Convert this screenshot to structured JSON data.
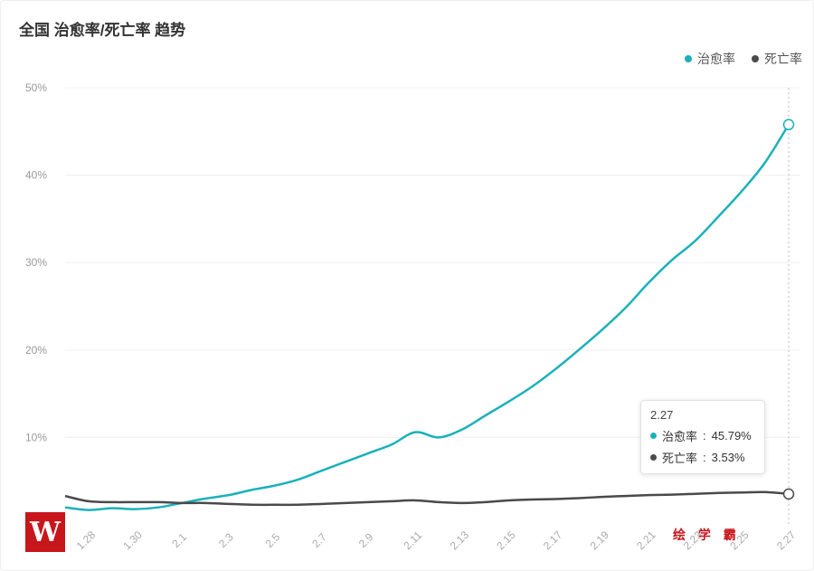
{
  "title": "全国 治愈率/死亡率 趋势",
  "watermark": "绘 学 霸",
  "logo_text": "W",
  "tooltip": {
    "date": "2.27",
    "rows": [
      {
        "name": "治愈率",
        "value": "45.79%"
      },
      {
        "name": "死亡率",
        "value": "3.53%"
      }
    ]
  },
  "chart_data": {
    "type": "line",
    "title": "全国 治愈率/死亡率 趋势",
    "xlabel": "",
    "ylabel": "",
    "ylim": [
      0,
      50
    ],
    "yticks": [
      "10%",
      "20%",
      "30%",
      "40%",
      "50%"
    ],
    "ytick_values": [
      10,
      20,
      30,
      40,
      50
    ],
    "xtick_labels": [
      "1.28",
      "1.30",
      "2.1",
      "2.3",
      "2.5",
      "2.7",
      "2.9",
      "2.11",
      "2.13",
      "2.15",
      "2.17",
      "2.19",
      "2.21",
      "2.23",
      "2.25",
      "2.27"
    ],
    "x": [
      "1.27",
      "1.28",
      "1.29",
      "1.30",
      "1.31",
      "2.1",
      "2.2",
      "2.3",
      "2.4",
      "2.5",
      "2.6",
      "2.7",
      "2.8",
      "2.9",
      "2.10",
      "2.11",
      "2.12",
      "2.13",
      "2.14",
      "2.15",
      "2.16",
      "2.17",
      "2.18",
      "2.19",
      "2.20",
      "2.21",
      "2.22",
      "2.23",
      "2.24",
      "2.25",
      "2.26",
      "2.27"
    ],
    "legend_position": "top-right",
    "grid": true,
    "series": [
      {
        "name": "治愈率",
        "color": "#1bb1b9",
        "values": [
          2.0,
          1.7,
          1.9,
          1.8,
          2.0,
          2.5,
          3.0,
          3.4,
          4.0,
          4.5,
          5.2,
          6.2,
          7.2,
          8.2,
          9.2,
          10.6,
          10.0,
          10.9,
          12.5,
          14.1,
          15.8,
          17.8,
          20.0,
          22.3,
          24.8,
          27.7,
          30.3,
          32.5,
          35.3,
          38.2,
          41.5,
          45.79
        ]
      },
      {
        "name": "死亡率",
        "color": "#4a4a4a",
        "values": [
          3.3,
          2.7,
          2.6,
          2.6,
          2.6,
          2.5,
          2.5,
          2.4,
          2.3,
          2.3,
          2.3,
          2.4,
          2.5,
          2.6,
          2.7,
          2.8,
          2.6,
          2.5,
          2.6,
          2.8,
          2.9,
          2.95,
          3.05,
          3.2,
          3.3,
          3.4,
          3.45,
          3.55,
          3.65,
          3.7,
          3.75,
          3.53
        ]
      }
    ]
  }
}
